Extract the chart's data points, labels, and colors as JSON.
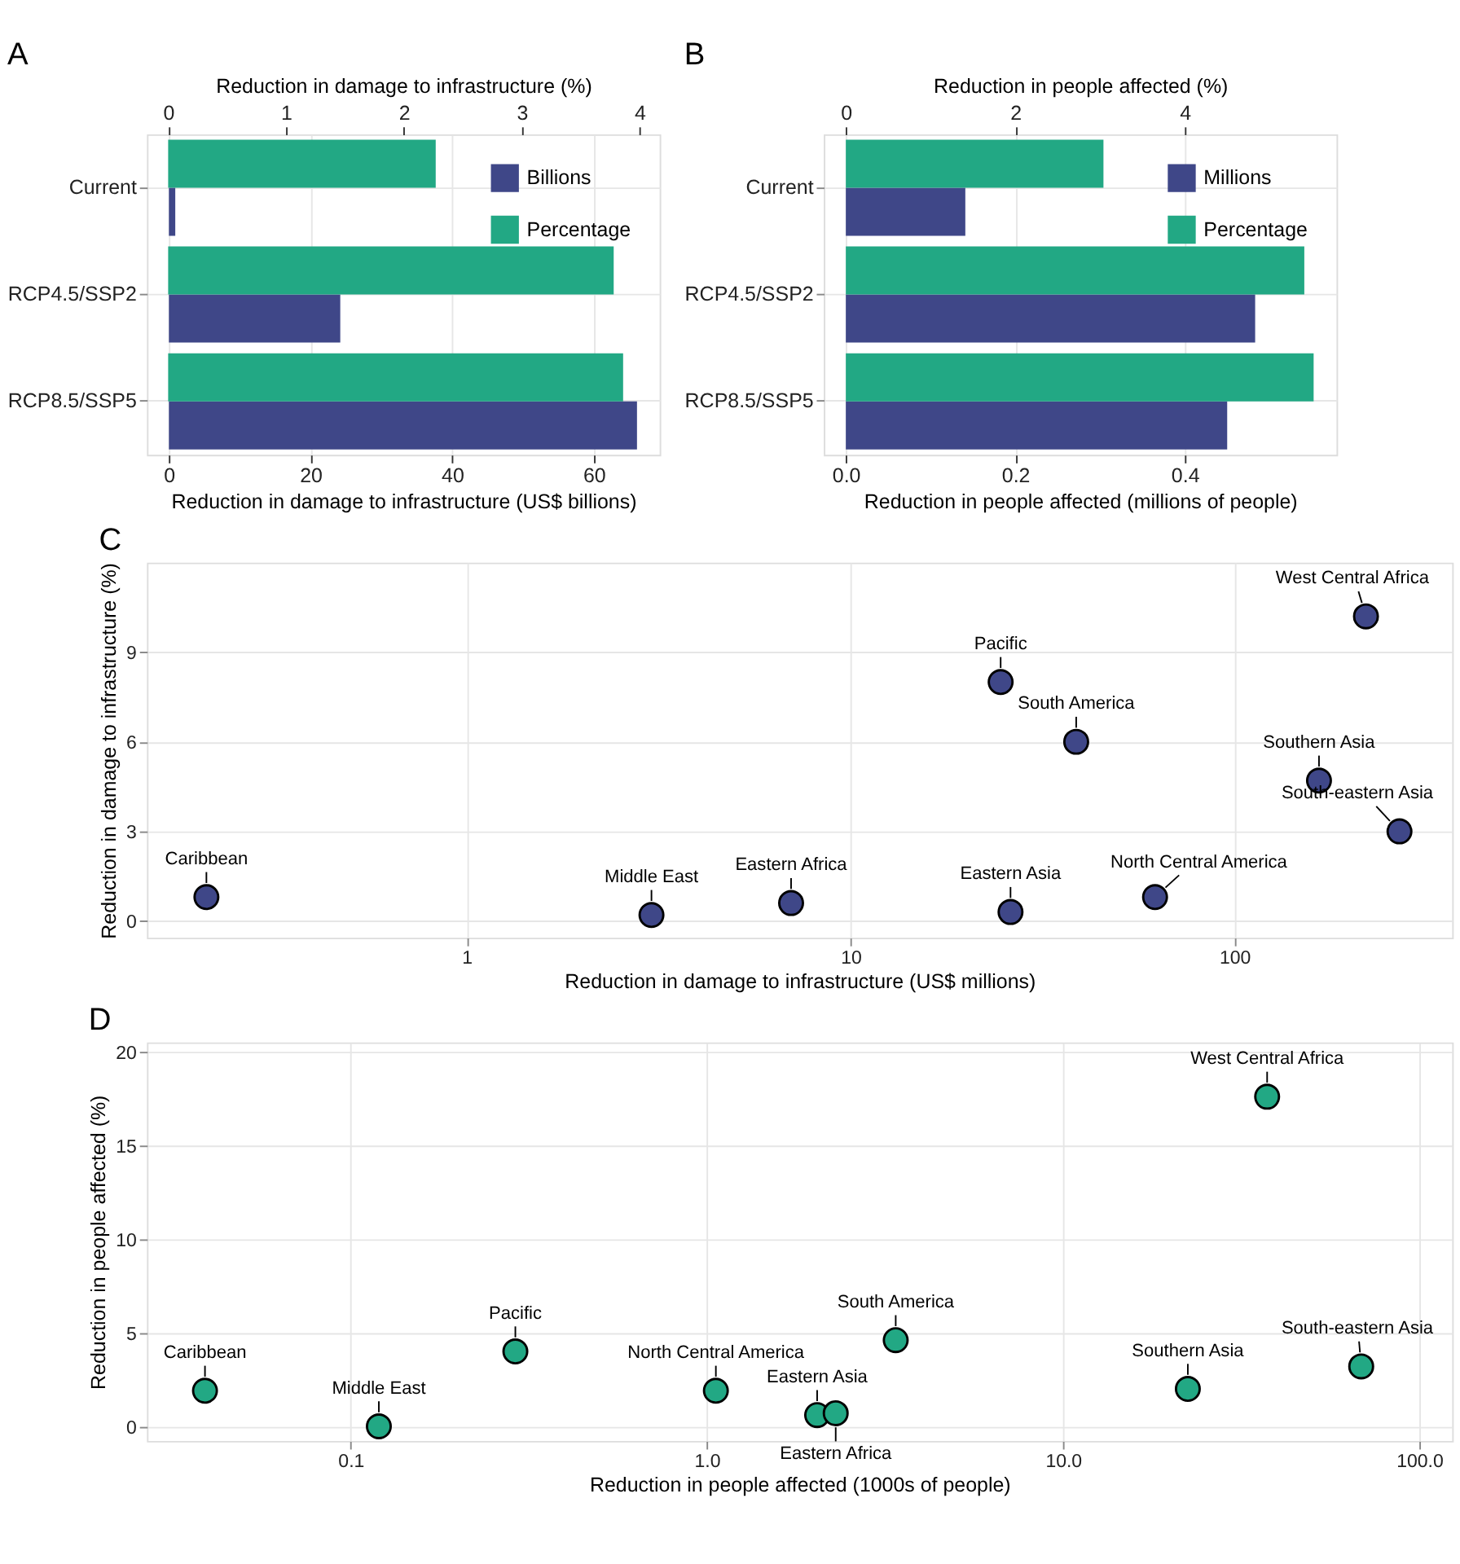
{
  "chart_data": [
    {
      "type": "bar",
      "title": "A",
      "orientation": "horizontal",
      "categories": [
        "Current",
        "RCP4.5/SSP2",
        "RCP8.5/SSP5"
      ],
      "series": [
        {
          "name": "Billions",
          "color": "#3f4788",
          "values": [
            0.9,
            24.2,
            66.1
          ]
        },
        {
          "name": "Percentage",
          "color": "#22a884",
          "values": [
            2.27,
            3.78,
            3.86
          ],
          "axis": "x2"
        }
      ],
      "xlabel": "Reduction in damage to infrastructure (US$ billions)",
      "xlim": [
        -3.1,
        69.3
      ],
      "xticks": [
        0,
        20,
        40,
        60
      ],
      "x2label": "Reduction in damage to infrastructure (%)",
      "x2lim": [
        -0.18,
        4.17
      ],
      "x2ticks": [
        0,
        1,
        2,
        3,
        4
      ],
      "legend": "top right",
      "grid": true
    },
    {
      "type": "bar",
      "title": "B",
      "orientation": "horizontal",
      "categories": [
        "Current",
        "RCP4.5/SSP2",
        "RCP8.5/SSP5"
      ],
      "series": [
        {
          "name": "Millions",
          "color": "#3f4788",
          "values": [
            0.141,
            0.483,
            0.45
          ]
        },
        {
          "name": "Percentage",
          "color": "#22a884",
          "values": [
            3.04,
            5.41,
            5.52
          ],
          "axis": "x2"
        }
      ],
      "xlabel": "Reduction in people affected (millions of people)",
      "xlim": [
        -0.026,
        0.579
      ],
      "xticks": [
        {
          "value": 0,
          "label": "0.0"
        },
        0.2,
        0.4
      ],
      "x2label": "Reduction in people affected (%)",
      "x2lim": [
        -0.26,
        5.79
      ],
      "x2ticks": [
        0,
        2,
        4
      ],
      "legend": "top right",
      "grid": true
    },
    {
      "type": "scatter",
      "title": "C",
      "log": "x",
      "marker": "circle",
      "grid": true,
      "series": [
        {
          "color": "#3f4788",
          "x": [
            0.21,
            3.03,
            7.0,
            24.6,
            26.1,
            38.7,
            62.1,
            166,
            269,
            220
          ],
          "values": [
            0.8,
            0.2,
            0.6,
            8.0,
            0.3,
            6.0,
            0.8,
            4.7,
            3.0,
            10.2
          ]
        }
      ],
      "xlabel": "Reduction in damage to infrastructure (US$ millions)",
      "xlim": [
        0.147,
        369
      ],
      "xticks": [
        1,
        10,
        100
      ],
      "ylabel": "Reduction in damage to infrastructure (%)",
      "ylim": [
        -0.56,
        12
      ],
      "yticks": [
        0,
        3,
        6,
        9
      ],
      "annotations": [
        {
          "text": "Caribbean",
          "x": 0.21,
          "y": 0.8
        },
        {
          "text": "Middle East",
          "x": 3.03,
          "y": 0.2
        },
        {
          "text": "Eastern Africa",
          "x": 7.0,
          "y": 0.6
        },
        {
          "text": "Pacific",
          "x": 24.6,
          "y": 8.0
        },
        {
          "text": "Eastern Asia",
          "x": 26.1,
          "y": 0.3
        },
        {
          "text": "South America",
          "x": 38.7,
          "y": 6.0
        },
        {
          "text": "North Central America",
          "x": 62.1,
          "y": 0.8
        },
        {
          "text": "Southern Asia",
          "x": 166,
          "y": 4.7
        },
        {
          "text": "South-eastern Asia",
          "x": 269,
          "y": 3.0
        },
        {
          "text": "West Central Africa",
          "x": 220,
          "y": 10.2
        }
      ]
    },
    {
      "type": "scatter",
      "title": "D",
      "log": "x",
      "marker": "circle",
      "grid": true,
      "series": [
        {
          "color": "#22a884",
          "x": [
            0.039,
            0.12,
            0.29,
            1.06,
            2.04,
            2.3,
            3.39,
            22.4,
            68.7,
            37.4
          ],
          "values": [
            1.9,
            0.0,
            4.0,
            1.9,
            0.6,
            0.7,
            4.6,
            2.0,
            3.2,
            17.6
          ]
        }
      ],
      "xlabel": "Reduction in people affected (1000s of people)",
      "xlim": [
        0.0268,
        123.7
      ],
      "xticks": [
        0.1,
        {
          "value": 1,
          "label": "1.0"
        },
        {
          "value": 10,
          "label": "10.0"
        },
        {
          "value": 100,
          "label": "100.0"
        }
      ],
      "ylabel": "Reduction in people affected (%)",
      "ylim": [
        -0.78,
        20.5
      ],
      "yticks": [
        0,
        5,
        10,
        15,
        20
      ],
      "annotations": [
        {
          "text": "Caribbean",
          "x": 0.039,
          "y": 1.9
        },
        {
          "text": "Middle East",
          "x": 0.12,
          "y": 0.0
        },
        {
          "text": "Pacific",
          "x": 0.29,
          "y": 4.0
        },
        {
          "text": "North Central America",
          "x": 1.06,
          "y": 1.9
        },
        {
          "text": "Eastern Asia",
          "x": 2.04,
          "y": 0.6
        },
        {
          "text": "Eastern Africa",
          "x": 2.3,
          "y": 0.7
        },
        {
          "text": "South America",
          "x": 3.39,
          "y": 4.6
        },
        {
          "text": "Southern Asia",
          "x": 22.4,
          "y": 2.0
        },
        {
          "text": "South-eastern Asia",
          "x": 68.7,
          "y": 3.2
        },
        {
          "text": "West Central Africa",
          "x": 37.4,
          "y": 17.6
        }
      ]
    }
  ]
}
